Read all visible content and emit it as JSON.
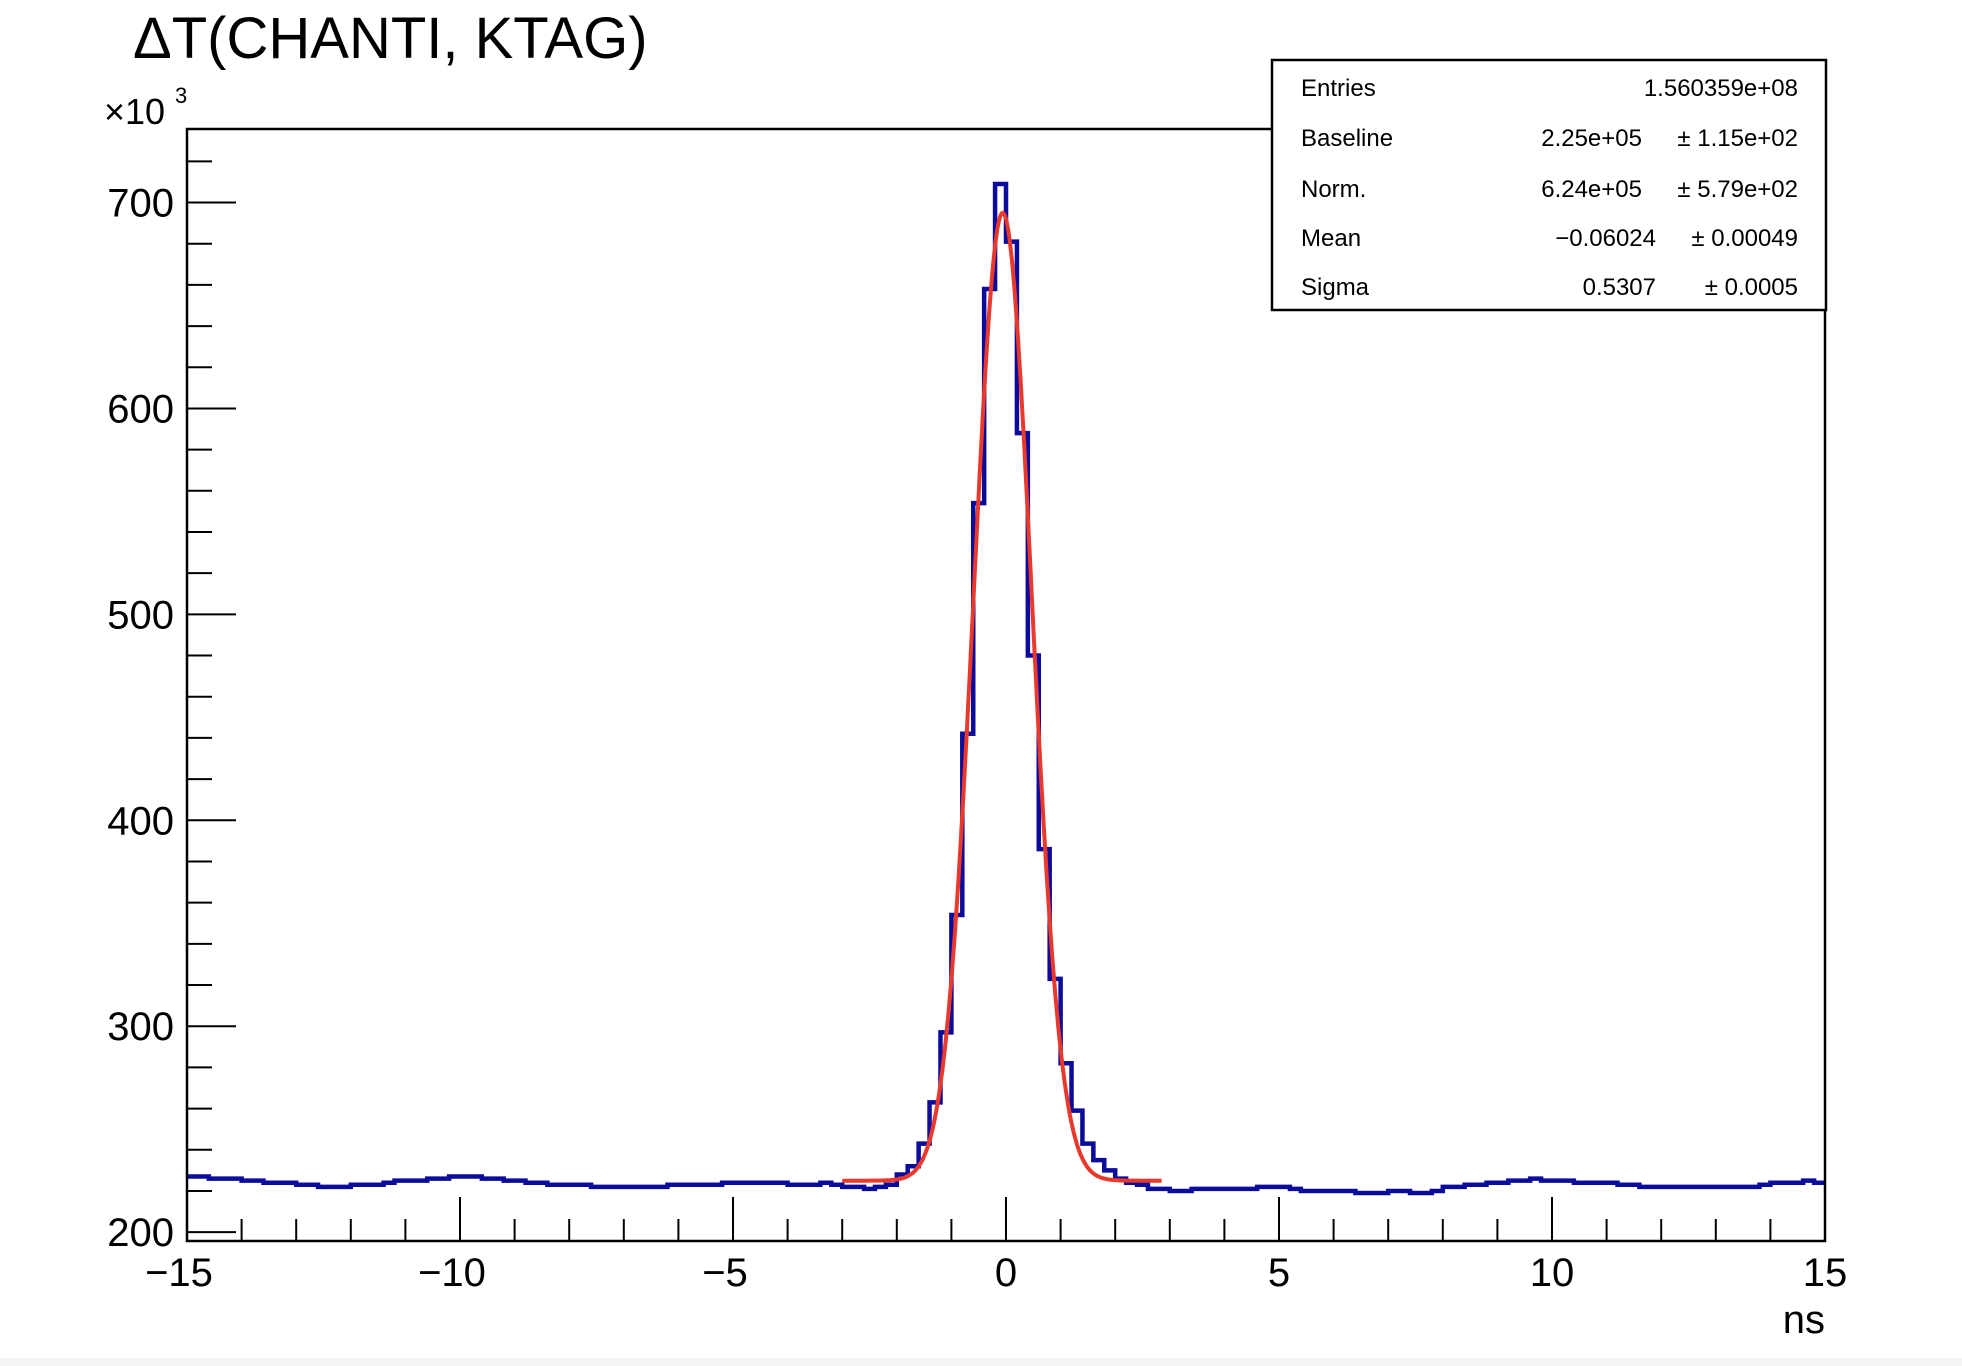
{
  "chart_data": {
    "type": "histogram",
    "title": "ΔT(CHANTI, KTAG)",
    "xlabel": "ns",
    "ylabel": "",
    "y_multiplier": "×10",
    "y_multiplier_exp": "3",
    "xlim": [
      -15,
      15
    ],
    "ylim": [
      195.7,
      735.7
    ],
    "x_ticks": [
      "−15",
      "−10",
      "−5",
      "0",
      "5",
      "10",
      "15"
    ],
    "x_tick_values": [
      -15,
      -10,
      -5,
      0,
      5,
      10,
      15
    ],
    "y_ticks": [
      "200",
      "300",
      "400",
      "500",
      "600",
      "700"
    ],
    "y_tick_values": [
      200,
      300,
      400,
      500,
      600,
      700
    ],
    "bin_width": 0.2,
    "bin_start": -15,
    "histogram_color": "#0b0b9c",
    "fit_color": "#e8392c",
    "values": [
      227,
      227,
      226,
      226,
      226,
      225,
      225,
      224,
      224,
      224,
      223,
      223,
      222,
      222,
      222,
      223,
      223,
      223,
      224,
      225,
      225,
      225,
      226,
      226,
      227,
      227,
      227,
      226,
      226,
      225,
      225,
      224,
      224,
      223,
      223,
      223,
      223,
      222,
      222,
      222,
      222,
      222,
      222,
      222,
      223,
      223,
      223,
      223,
      223,
      224,
      224,
      224,
      224,
      224,
      224,
      223,
      223,
      223,
      224,
      223,
      222,
      222,
      221,
      222,
      223,
      228,
      232,
      243,
      263,
      297,
      354,
      442,
      554,
      658,
      709,
      681,
      588,
      480,
      386,
      323,
      282,
      259,
      243,
      235,
      230,
      226,
      224,
      223,
      221,
      221,
      220,
      220,
      221,
      221,
      221,
      221,
      221,
      221,
      222,
      222,
      222,
      221,
      220,
      220,
      220,
      220,
      220,
      219,
      219,
      219,
      220,
      220,
      219,
      219,
      220,
      222,
      222,
      223,
      223,
      224,
      224,
      225,
      225,
      226,
      225,
      225,
      225,
      224,
      224,
      224,
      224,
      223,
      223,
      222,
      222,
      222,
      222,
      222,
      222,
      222,
      222,
      222,
      222,
      222,
      223,
      224,
      224,
      224,
      225,
      224
    ],
    "fit": {
      "function": "gaussian + baseline",
      "range": [
        -3,
        2.85
      ],
      "baseline": 225,
      "peak_height": 470,
      "mean": -0.06024,
      "sigma": 0.5307
    },
    "stats": [
      {
        "label": "Entries",
        "value": "1.560359e+08",
        "error": ""
      },
      {
        "label": "Baseline",
        "value": "2.25e+05",
        "error": "± 1.15e+02"
      },
      {
        "label": "Norm.",
        "value": "6.24e+05",
        "error": "± 5.79e+02"
      },
      {
        "label": "Mean",
        "value": "−0.06024",
        "error": "± 0.00049"
      },
      {
        "label": "Sigma",
        "value": "0.5307",
        "error": "± 0.0005"
      }
    ]
  }
}
